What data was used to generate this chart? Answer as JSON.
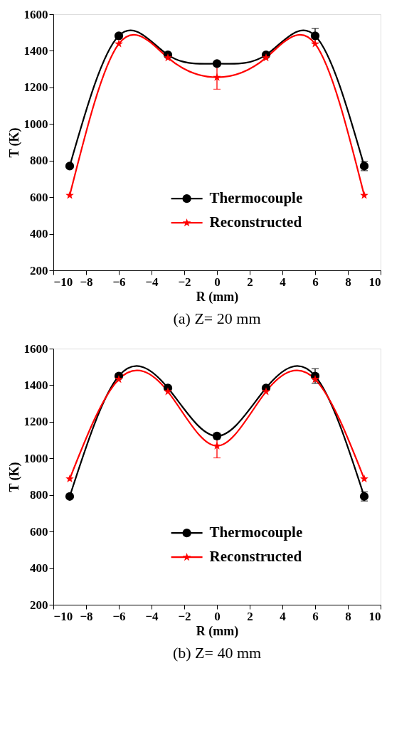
{
  "chart_data": [
    {
      "type": "line",
      "title": "(a) Z= 20 mm",
      "xlabel": "R (mm)",
      "ylabel": "T (K)",
      "x": [
        -9,
        -6,
        -3,
        0,
        3,
        6,
        9
      ],
      "xlim": [
        -10,
        10
      ],
      "xticks": [
        -10,
        -8,
        -6,
        -4,
        -2,
        0,
        2,
        4,
        6,
        8,
        10
      ],
      "ylim": [
        200,
        1600
      ],
      "yticks": [
        200,
        400,
        600,
        800,
        1000,
        1200,
        1400,
        1600
      ],
      "grid": false,
      "legend": "bottom",
      "line_style": "solid",
      "series": [
        {
          "name": "Thermocouple",
          "color": "#000000",
          "marker": "circle",
          "values": [
            770,
            1482,
            1378,
            1330,
            1378,
            1482,
            770
          ],
          "errors": [
            10,
            10,
            10,
            10,
            10,
            40,
            25
          ]
        },
        {
          "name": "Reconstructed",
          "color": "#ff0000",
          "marker": "star",
          "values": [
            610,
            1438,
            1362,
            1255,
            1362,
            1438,
            610
          ],
          "errors": [
            null,
            null,
            null,
            65,
            null,
            null,
            null
          ]
        }
      ]
    },
    {
      "type": "line",
      "title": "(b) Z= 40 mm",
      "xlabel": "R (mm)",
      "ylabel": "T (K)",
      "x": [
        -9,
        -6,
        -3,
        0,
        3,
        6,
        9
      ],
      "xlim": [
        -10,
        10
      ],
      "xticks": [
        -10,
        -8,
        -6,
        -4,
        -2,
        0,
        2,
        4,
        6,
        8,
        10
      ],
      "ylim": [
        200,
        1600
      ],
      "yticks": [
        200,
        400,
        600,
        800,
        1000,
        1200,
        1400,
        1600
      ],
      "grid": false,
      "legend": "bottom",
      "line_style": "solid",
      "series": [
        {
          "name": "Thermocouple",
          "color": "#000000",
          "marker": "circle",
          "values": [
            792,
            1450,
            1385,
            1122,
            1385,
            1450,
            792
          ],
          "errors": [
            10,
            10,
            10,
            15,
            10,
            40,
            25
          ]
        },
        {
          "name": "Reconstructed",
          "color": "#ff0000",
          "marker": "star",
          "values": [
            888,
            1432,
            1365,
            1068,
            1365,
            1432,
            888
          ],
          "errors": [
            null,
            null,
            null,
            65,
            null,
            null,
            null
          ]
        }
      ]
    }
  ]
}
